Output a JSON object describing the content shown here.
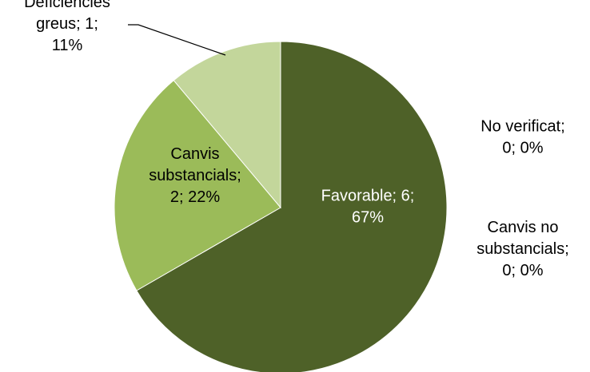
{
  "chart_data": {
    "type": "pie",
    "title": "",
    "slices": [
      {
        "name": "Favorable",
        "value": 6,
        "percent": "67%",
        "color": "#4e6128",
        "label_lines": [
          "Favorable; 6;",
          "67%"
        ]
      },
      {
        "name": "Canvis substancials",
        "value": 2,
        "percent": "22%",
        "color": "#9bbb59",
        "label_lines": [
          "Canvis",
          "substancials;",
          "2; 22%"
        ]
      },
      {
        "name": "Deficiències greus",
        "value": 1,
        "percent": "11%",
        "color": "#c3d69b",
        "label_lines": [
          "Deficiències",
          "greus; 1;",
          "11%"
        ]
      },
      {
        "name": "No verificat",
        "value": 0,
        "percent": "0%",
        "color": "#4e6128",
        "label_lines": [
          "No verificat;",
          "0; 0%"
        ]
      },
      {
        "name": "Canvis no substancials",
        "value": 0,
        "percent": "0%",
        "color": "#4e6128",
        "label_lines": [
          "Canvis no",
          "substancials;",
          "0; 0%"
        ]
      }
    ],
    "legend": "none"
  }
}
